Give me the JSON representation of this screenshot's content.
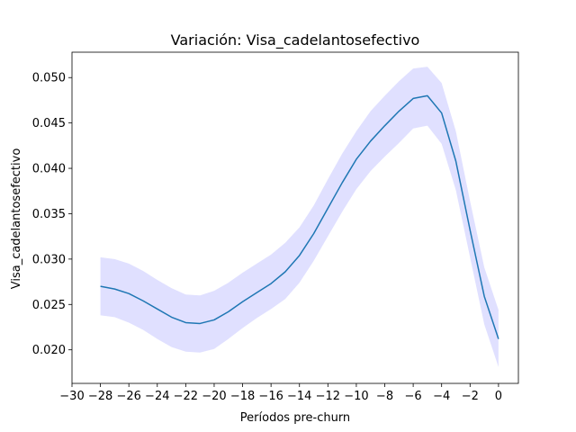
{
  "chart_data": {
    "type": "line",
    "title": "Variación: Visa_cadelantosefectivo",
    "xlabel": "Períodos pre-churn",
    "ylabel": "Visa_cadelantosefectivo",
    "xlim": [
      -30,
      1.4
    ],
    "ylim": [
      0.0163,
      0.0528
    ],
    "xticks": [
      -30,
      -28,
      -26,
      -24,
      -22,
      -20,
      -18,
      -16,
      -14,
      -12,
      -10,
      -8,
      -6,
      -4,
      -2,
      0
    ],
    "xtick_labels": [
      "−30",
      "−28",
      "−26",
      "−24",
      "−22",
      "−20",
      "−18",
      "−16",
      "−14",
      "−12",
      "−10",
      "−8",
      "−6",
      "−4",
      "−2",
      "0"
    ],
    "yticks": [
      0.02,
      0.025,
      0.03,
      0.035,
      0.04,
      0.045,
      0.05
    ],
    "ytick_labels": [
      "0.020",
      "0.025",
      "0.030",
      "0.035",
      "0.040",
      "0.045",
      "0.050"
    ],
    "grid": false,
    "line_color": "#1f77b4",
    "band_color": "#0000ff",
    "band_opacity": 0.12,
    "series": [
      {
        "x": [
          -28,
          -27,
          -26,
          -25,
          -24,
          -23,
          -22,
          -21,
          -20,
          -19,
          -18,
          -17,
          -16,
          -15,
          -14,
          -13,
          -12,
          -11,
          -10,
          -9,
          -8,
          -7,
          -6,
          -5,
          -4,
          -3,
          -2,
          -1,
          0
        ],
        "values": [
          0.027,
          0.0267,
          0.0262,
          0.0254,
          0.0245,
          0.0236,
          0.023,
          0.0229,
          0.0233,
          0.0242,
          0.0253,
          0.0263,
          0.0273,
          0.0286,
          0.0304,
          0.0328,
          0.0356,
          0.0384,
          0.041,
          0.043,
          0.0447,
          0.0463,
          0.0477,
          0.048,
          0.0461,
          0.0408,
          0.0332,
          0.0259,
          0.0212
        ],
        "lower": [
          0.0238,
          0.0236,
          0.023,
          0.0222,
          0.0212,
          0.0203,
          0.0198,
          0.0197,
          0.0201,
          0.0212,
          0.0224,
          0.0235,
          0.0245,
          0.0256,
          0.0274,
          0.0298,
          0.0325,
          0.0352,
          0.0377,
          0.0397,
          0.0413,
          0.0428,
          0.0444,
          0.0447,
          0.0427,
          0.0376,
          0.0302,
          0.0228,
          0.0181
        ],
        "upper": [
          0.0302,
          0.03,
          0.0295,
          0.0287,
          0.0277,
          0.0268,
          0.0261,
          0.026,
          0.0265,
          0.0274,
          0.0285,
          0.0295,
          0.0305,
          0.0318,
          0.0335,
          0.0359,
          0.0388,
          0.0416,
          0.0441,
          0.0463,
          0.048,
          0.0496,
          0.051,
          0.0512,
          0.0494,
          0.0441,
          0.0364,
          0.0291,
          0.0244
        ]
      }
    ]
  }
}
